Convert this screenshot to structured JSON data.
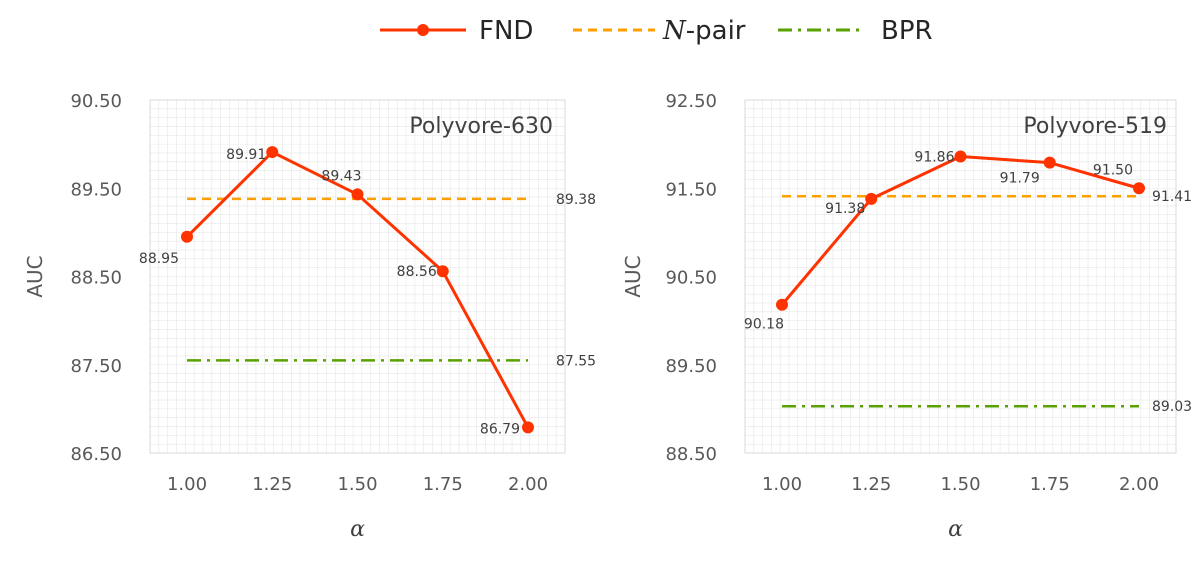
{
  "legend": {
    "items": [
      {
        "label": "FND",
        "italic_prefix": "",
        "color": "#ff3300",
        "style": "solid-marker"
      },
      {
        "label": "-pair",
        "italic_prefix": "N",
        "color": "#ffa000",
        "style": "dashed"
      },
      {
        "label": "BPR",
        "italic_prefix": "",
        "color": "#5aa000",
        "style": "dashdot"
      }
    ]
  },
  "colors": {
    "fnd": "#ff3300",
    "npair": "#ffa000",
    "bpr": "#5aa000",
    "grid": "#e6e6e6",
    "frame": "#d9d9d9"
  },
  "chart_data": [
    {
      "type": "line",
      "title": "Polyvore-630",
      "xlabel": "α",
      "ylabel": "AUC",
      "x": [
        1.0,
        1.25,
        1.5,
        1.75,
        2.0
      ],
      "x_tick_labels": [
        "1.00",
        "1.25",
        "1.50",
        "1.75",
        "2.00"
      ],
      "y_tick_labels": [
        "86.50",
        "87.50",
        "88.50",
        "89.50",
        "90.50"
      ],
      "ylim": [
        86.5,
        90.5
      ],
      "grid": true,
      "series": [
        {
          "key": "fnd",
          "values": [
            88.95,
            89.91,
            89.43,
            88.56,
            86.79
          ],
          "labels": [
            "88.95",
            "89.91",
            "89.43",
            "88.56",
            "86.79"
          ]
        }
      ],
      "reference_lines": [
        {
          "key": "npair",
          "value": 89.38,
          "label": "89.38"
        },
        {
          "key": "bpr",
          "value": 87.55,
          "label": "87.55"
        }
      ]
    },
    {
      "type": "line",
      "title": "Polyvore-519",
      "xlabel": "α",
      "ylabel": "AUC",
      "x": [
        1.0,
        1.25,
        1.5,
        1.75,
        2.0
      ],
      "x_tick_labels": [
        "1.00",
        "1.25",
        "1.50",
        "1.75",
        "2.00"
      ],
      "y_tick_labels": [
        "88.50",
        "89.50",
        "90.50",
        "91.50",
        "92.50"
      ],
      "ylim": [
        88.5,
        92.5
      ],
      "grid": true,
      "series": [
        {
          "key": "fnd",
          "values": [
            90.18,
            91.38,
            91.86,
            91.79,
            91.5
          ],
          "labels": [
            "90.18",
            "91.38",
            "91.86",
            "91.79",
            "91.50"
          ]
        }
      ],
      "reference_lines": [
        {
          "key": "npair",
          "value": 91.41,
          "label": "91.41"
        },
        {
          "key": "bpr",
          "value": 89.03,
          "label": "89.03"
        }
      ]
    }
  ]
}
